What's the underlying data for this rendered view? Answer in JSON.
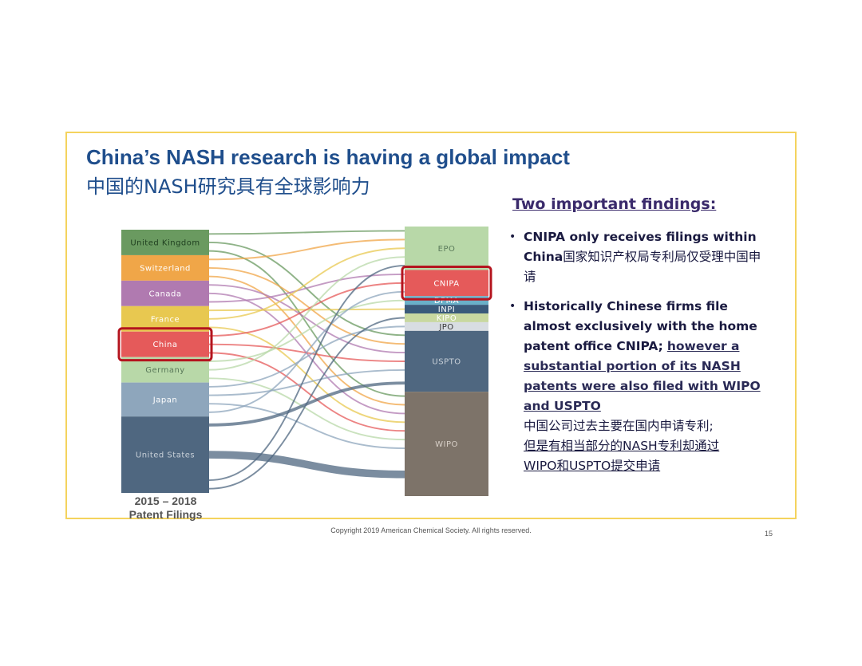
{
  "title": {
    "en": "China’s NASH research is having a global impact",
    "cn": "中国的NASH研究具有全球影响力"
  },
  "findings": {
    "heading": "Two important findings:",
    "f1_a": "CNIPA only receives filings within China",
    "f1_b": "国家知识产权局专利局仅受理中国申请",
    "f2_a": "Historically Chinese firms file almost exclusively with the home patent office CNIPA;",
    "f2_b": "however a substantial portion of its NASH patents were also filed with WIPO and USPTO",
    "f2_c": "中国公司过去主要在国内申请专利;",
    "f2_d": "但是有相当部分的NASH专利却通过",
    "f2_e": "WIPO和USPTO提交申请"
  },
  "caption": {
    "line1": "2015 – 2018",
    "line2": "Patent Filings"
  },
  "footer": {
    "copyright": "Copyright 2019 American Chemical Society. All rights reserved.",
    "page": "15"
  },
  "highlight_color": "#b4141e",
  "chart_data": {
    "type": "sankey",
    "title": "",
    "source_nodes": [
      {
        "name": "United Kingdom",
        "color": "#6a9a60",
        "label_color": "#1f3f1f"
      },
      {
        "name": "Switzerland",
        "color": "#f0a648",
        "label_color": "#ffffff"
      },
      {
        "name": "Canada",
        "color": "#b07ab0",
        "label_color": "#ffffff"
      },
      {
        "name": "France",
        "color": "#e8c850",
        "label_color": "#ffffff"
      },
      {
        "name": "China",
        "color": "#e55a5a",
        "label_color": "#ffffff"
      },
      {
        "name": "Germany",
        "color": "#b8d8a8",
        "label_color": "#5a7a5a"
      },
      {
        "name": "Japan",
        "color": "#8ea6bc",
        "label_color": "#ffffff"
      },
      {
        "name": "United States",
        "color": "#4f6780",
        "label_color": "#c8d0d8"
      }
    ],
    "target_nodes": [
      {
        "name": "EPO",
        "color": "#b8d8a8",
        "label_color": "#5a7a5a"
      },
      {
        "name": "CNIPA",
        "color": "#e55a5a",
        "label_color": "#ffffff"
      },
      {
        "name": "DPMA",
        "color": "#6ab0c8",
        "label_color": "#ffffff"
      },
      {
        "name": "INPI",
        "color": "#3a5a7a",
        "label_color": "#ffffff"
      },
      {
        "name": "KIPO",
        "color": "#c8d8a0",
        "label_color": "#ffffff"
      },
      {
        "name": "JPO",
        "color": "#d8dde2",
        "label_color": "#333333"
      },
      {
        "name": "USPTO",
        "color": "#4f6780",
        "label_color": "#c8d0d8"
      },
      {
        "name": "WIPO",
        "color": "#7d7369",
        "label_color": "#d8d0c8"
      }
    ],
    "flows": [
      {
        "from": "United Kingdom",
        "to": "EPO",
        "value": 1
      },
      {
        "from": "United Kingdom",
        "to": "USPTO",
        "value": 1
      },
      {
        "from": "United Kingdom",
        "to": "WIPO",
        "value": 1
      },
      {
        "from": "Switzerland",
        "to": "EPO",
        "value": 1
      },
      {
        "from": "Switzerland",
        "to": "USPTO",
        "value": 1
      },
      {
        "from": "Switzerland",
        "to": "WIPO",
        "value": 1
      },
      {
        "from": "Canada",
        "to": "USPTO",
        "value": 1
      },
      {
        "from": "Canada",
        "to": "WIPO",
        "value": 1
      },
      {
        "from": "Canada",
        "to": "CNIPA",
        "value": 1
      },
      {
        "from": "France",
        "to": "INPI",
        "value": 1
      },
      {
        "from": "France",
        "to": "EPO",
        "value": 1
      },
      {
        "from": "France",
        "to": "WIPO",
        "value": 1
      },
      {
        "from": "China",
        "to": "CNIPA",
        "value": 1
      },
      {
        "from": "China",
        "to": "USPTO",
        "value": 1
      },
      {
        "from": "China",
        "to": "WIPO",
        "value": 1
      },
      {
        "from": "Germany",
        "to": "DPMA",
        "value": 1
      },
      {
        "from": "Germany",
        "to": "EPO",
        "value": 1
      },
      {
        "from": "Germany",
        "to": "WIPO",
        "value": 1
      },
      {
        "from": "Japan",
        "to": "JPO",
        "value": 1
      },
      {
        "from": "Japan",
        "to": "USPTO",
        "value": 1
      },
      {
        "from": "Japan",
        "to": "WIPO",
        "value": 1
      },
      {
        "from": "Japan",
        "to": "CNIPA",
        "value": 1
      },
      {
        "from": "United States",
        "to": "USPTO",
        "value": 2
      },
      {
        "from": "United States",
        "to": "WIPO",
        "value": 5
      },
      {
        "from": "United States",
        "to": "EPO",
        "value": 1
      },
      {
        "from": "United States",
        "to": "KIPO",
        "value": 1
      }
    ],
    "highlighted_nodes": [
      "China",
      "CNIPA"
    ]
  }
}
